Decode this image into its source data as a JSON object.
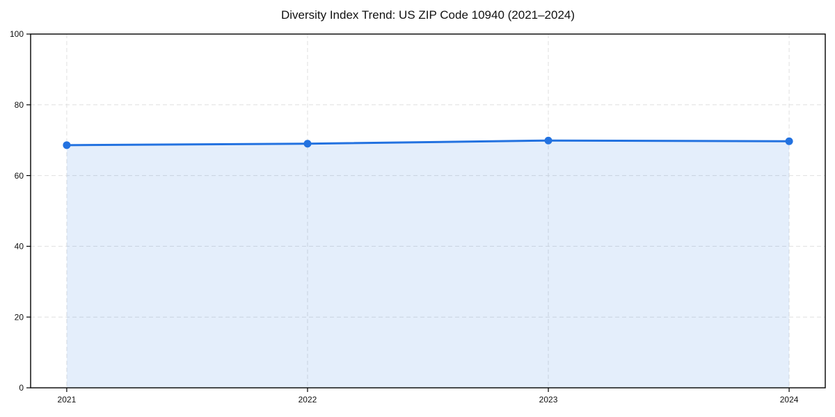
{
  "page": {
    "background": "#ffffff"
  },
  "chart_data": {
    "type": "line",
    "title": "Diversity Index Trend: US ZIP Code 10940 (2021–2024)",
    "x": [
      2021,
      2022,
      2023,
      2024
    ],
    "series": [
      {
        "name": "Diversity Index",
        "values": [
          68.6,
          69.0,
          69.9,
          69.7
        ]
      }
    ],
    "xlabel": "",
    "ylabel": "",
    "xlim": [
      2020.85,
      2024.15
    ],
    "ylim": [
      0,
      100
    ],
    "xticks": [
      2021,
      2022,
      2023,
      2024
    ],
    "xtick_labels": [
      "2021",
      "2022",
      "2023",
      "2024"
    ],
    "yticks": [
      0,
      20,
      40,
      60,
      80,
      100
    ],
    "ytick_labels": [
      "0",
      "20",
      "40",
      "60",
      "80",
      "100"
    ],
    "grid": true,
    "grid_style": "dashed",
    "legend_position": "none",
    "colors": {
      "line": "#2372e0",
      "marker": "#2372e0",
      "area_fill": "#2372e0",
      "area_fill_opacity": 0.12,
      "grid": "#e0e0e0",
      "axis": "#000000",
      "tick_label": "#111111",
      "title": "#111111"
    },
    "marker": "circle",
    "marker_radius": 5.5,
    "line_width": 3,
    "area_fill": true
  }
}
